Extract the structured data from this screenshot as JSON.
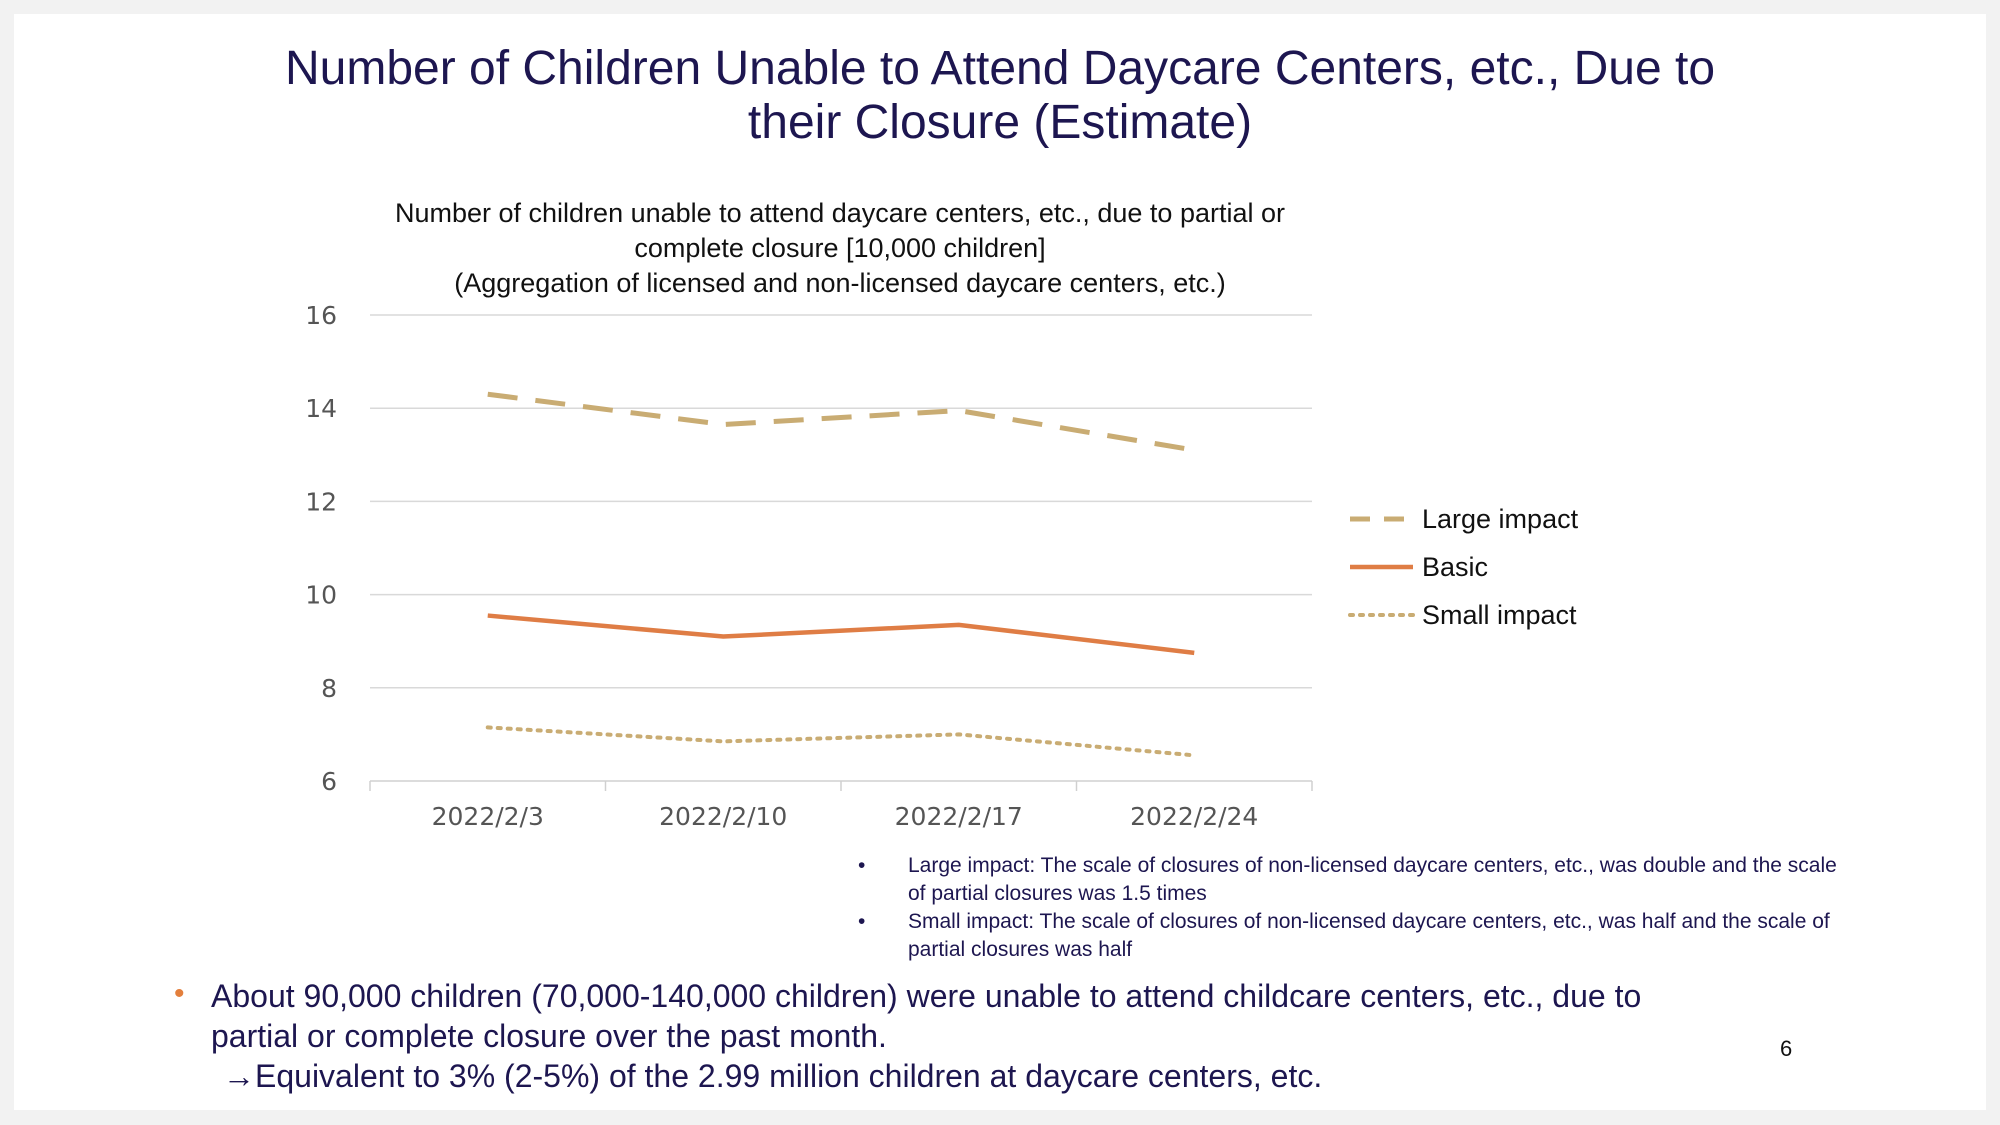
{
  "slide": {
    "title_line1": "Number of Children Unable to Attend Daycare Centers, etc., Due to",
    "title_line2": "their Closure (Estimate)",
    "page_number": "6",
    "notes": [
      {
        "line1": "Large impact: The scale of closures of non-licensed daycare centers, etc., was double and the scale",
        "line2": "of partial closures was 1.5 times"
      },
      {
        "line1": "Small impact: The scale of closures of non-licensed daycare centers, etc., was half and the scale of",
        "line2": "partial closures was half"
      }
    ],
    "summary": {
      "line1": "About 90,000 children (70,000-140,000 children) were unable to attend childcare centers, etc., due to",
      "line2": "partial or complete closure over the past month.",
      "line3": "→Equivalent to 3% (2-5%) of the 2.99 million children at daycare centers, etc."
    },
    "note_bullet": "•",
    "summary_bullet": "•"
  },
  "chart_data": {
    "type": "line",
    "title_line1": "Number of children unable to attend daycare centers, etc., due to partial or",
    "title_line2": "complete closure [10,000 children]",
    "title_line3": "(Aggregation of licensed and non-licensed daycare centers, etc.)",
    "categories": [
      "2022/2/3",
      "2022/2/10",
      "2022/2/17",
      "2022/2/24"
    ],
    "ylim": [
      6,
      16
    ],
    "yticks": [
      6,
      8,
      10,
      12,
      14,
      16
    ],
    "grid": true,
    "legend_position": "right",
    "series": [
      {
        "name": "Large impact",
        "values": [
          14.3,
          13.65,
          13.95,
          13.1
        ],
        "color": "#c9ac73",
        "style": "dashed"
      },
      {
        "name": "Basic",
        "values": [
          9.55,
          9.1,
          9.35,
          8.75
        ],
        "color": "#df7d45",
        "style": "solid"
      },
      {
        "name": "Small impact",
        "values": [
          7.15,
          6.85,
          7.0,
          6.55
        ],
        "color": "#c9ac73",
        "style": "dotted"
      }
    ]
  }
}
